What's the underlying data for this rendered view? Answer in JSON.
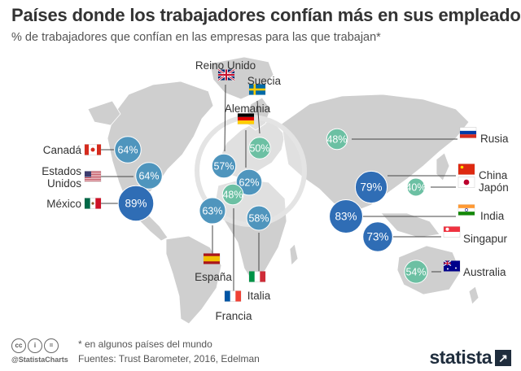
{
  "header": {
    "title": "Países donde los trabajadores confían más en sus empleadores",
    "subtitle": "% de trabajadores que confían en las empresas para las que trabajan*"
  },
  "footer": {
    "note": "* en algunos países del mundo",
    "source": "Fuentes: Trust Barometer, 2016, Edelman",
    "handle": "@StatistaCharts",
    "brand": "statista",
    "license_icons": [
      "cc-icon",
      "by-icon",
      "equals-icon"
    ]
  },
  "colors": {
    "map": "#cfcfcf",
    "bubble_high": "#2f6db5",
    "bubble_mid": "#4f95bd",
    "bubble_low": "#6cc0a3",
    "leader": "#444444"
  },
  "chart_data": {
    "type": "bubble-map",
    "title": "Países donde los trabajadores confían más en sus empleadores",
    "subtitle": "% de trabajadores que confían en las empresas para las que trabajan*",
    "unit": "%",
    "series": [
      {
        "country": "Canadá",
        "value": 64,
        "label": "64%",
        "flag": "canada"
      },
      {
        "country": "Estados Unidos",
        "value": 64,
        "label": "64%",
        "flag": "usa"
      },
      {
        "country": "México",
        "value": 89,
        "label": "89%",
        "flag": "mexico"
      },
      {
        "country": "Reino Unido",
        "value": 57,
        "label": "57%",
        "flag": "uk"
      },
      {
        "country": "Suecia",
        "value": 50,
        "label": "50%",
        "flag": "sweden"
      },
      {
        "country": "Alemania",
        "value": 62,
        "label": "62%",
        "flag": "germany"
      },
      {
        "country": "Francia",
        "value": 48,
        "label": "48%",
        "flag": "france"
      },
      {
        "country": "España",
        "value": 63,
        "label": "63%",
        "flag": "spain"
      },
      {
        "country": "Italia",
        "value": 58,
        "label": "58%",
        "flag": "italy"
      },
      {
        "country": "Rusia",
        "value": 48,
        "label": "48%",
        "flag": "russia"
      },
      {
        "country": "China",
        "value": 79,
        "label": "79%",
        "flag": "china"
      },
      {
        "country": "Japón",
        "value": 40,
        "label": "40%",
        "flag": "japan"
      },
      {
        "country": "India",
        "value": 83,
        "label": "83%",
        "flag": "india"
      },
      {
        "country": "Singapur",
        "value": 73,
        "label": "73%",
        "flag": "singapore"
      },
      {
        "country": "Australia",
        "value": 54,
        "label": "54%",
        "flag": "australia"
      }
    ],
    "country_labels": {
      "canada": "Canadá",
      "usa_line1": "Estados",
      "usa_line2": "Unidos",
      "mexico": "México",
      "uk": "Reino Unido",
      "sweden": "Suecia",
      "germany": "Alemania",
      "france": "Francia",
      "spain": "España",
      "italy": "Italia",
      "russia": "Rusia",
      "china": "China",
      "japan": "Japón",
      "india": "India",
      "singapore": "Singapur",
      "australia": "Australia"
    }
  }
}
